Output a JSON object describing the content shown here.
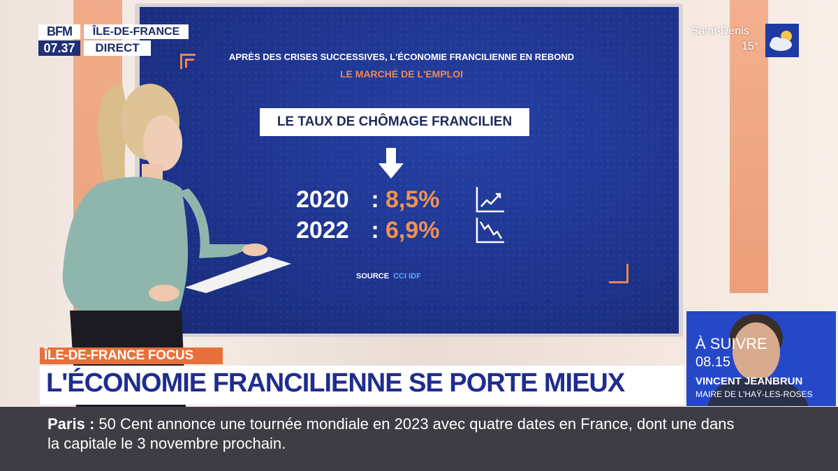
{
  "channel": {
    "logo": "BFM",
    "time": "07.37",
    "region": "ÎLE-DE-FRANCE",
    "status": "DIRECT"
  },
  "weather": {
    "city": "Saint-Denis",
    "temp": "15°",
    "icon": "cloud-sun-icon"
  },
  "screen": {
    "title": "APRÈS DES CRISES SUCCESSIVES, L'ÉCONOMIE FRANCILIENNE EN REBOND",
    "subtitle": "LE MARCHÉ DE L'EMPLOI",
    "box": "LE TAUX DE CHÔMAGE FRANCILIEN",
    "rows": [
      {
        "year": "2020",
        "colon": ":",
        "value": "8,5%",
        "icon": "trend-up-icon"
      },
      {
        "year": "2022",
        "colon": ":",
        "value": "6,9%",
        "icon": "trend-down-icon"
      }
    ],
    "source_label": "SOURCE",
    "source_value": "CCI IDF"
  },
  "lower_third": {
    "tag": "ÎLE-DE-FRANCE FOCUS",
    "headline": "L'ÉCONOMIE FRANCILIENNE SE PORTE MIEUX"
  },
  "ticker": {
    "city": "Paris",
    "separator": ":",
    "text": "50 Cent annonce une tournée mondiale en 2023 avec quatre dates en France, dont une dans la capitale le 3 novembre prochain."
  },
  "next_up": {
    "label": "À SUIVRE",
    "time": "08.15",
    "name": "VINCENT JEANBRUN",
    "role": "MAIRE DE L'HAŸ-LES-ROSES"
  },
  "colors": {
    "accent_orange": "#e8703a",
    "brand_blue": "#1f2d8e",
    "screen_blue": "#1f3590"
  }
}
